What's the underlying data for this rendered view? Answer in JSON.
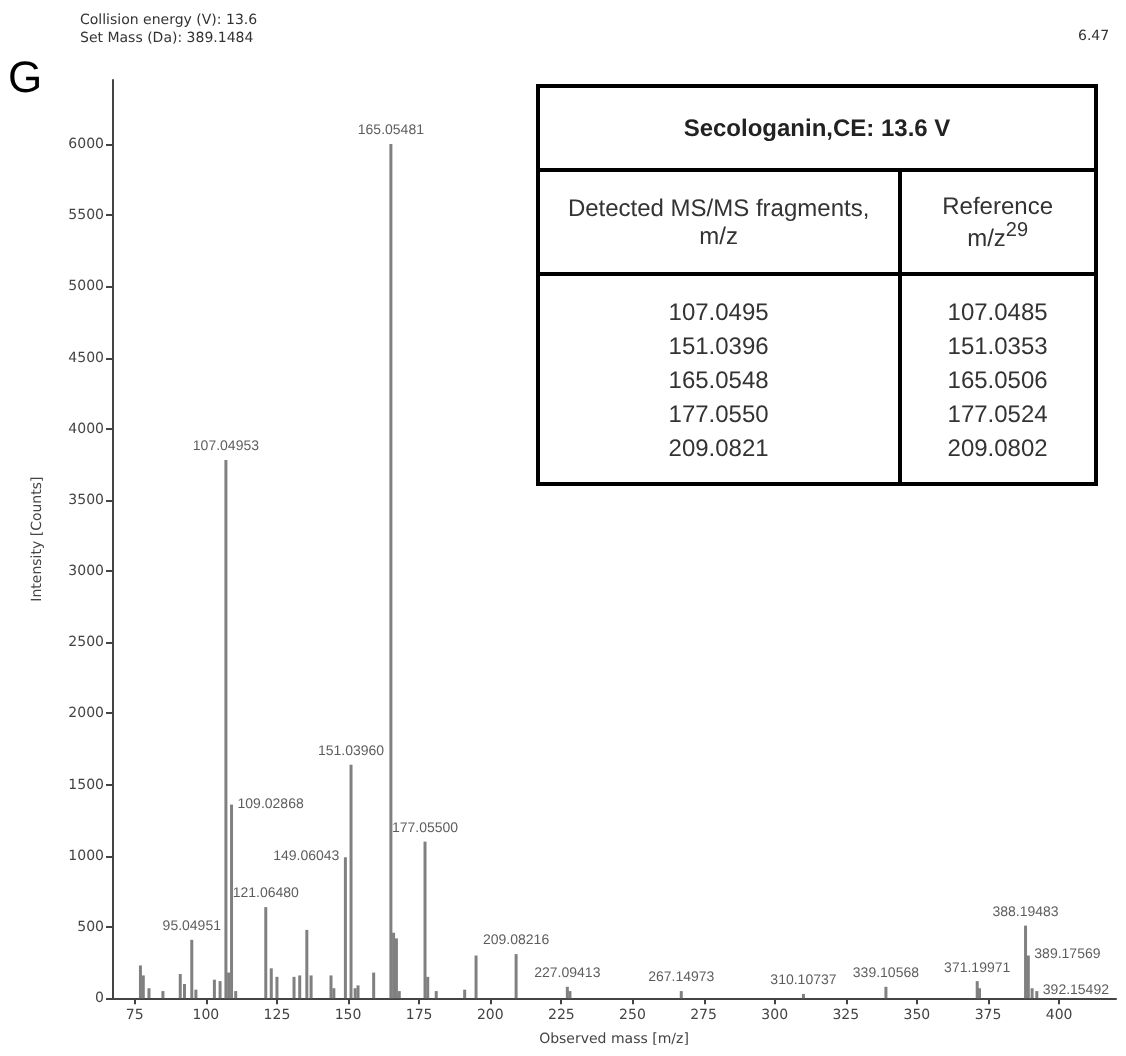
{
  "chart_data": [
    {
      "type": "bar",
      "xlabel": "Observed mass [m/z]",
      "ylabel": "Intensity [Counts]",
      "x": [
        77,
        78,
        80,
        84.9,
        91,
        92.5,
        95.04951,
        96.5,
        103,
        105,
        107.04953,
        108,
        109.02868,
        110.5,
        121.0648,
        123,
        125,
        131,
        133,
        135.5,
        137,
        144,
        145,
        149.06043,
        151.0396,
        152.5,
        153.5,
        159,
        165.05481,
        166,
        167,
        168,
        177.055,
        178,
        181,
        191,
        195,
        209.08216,
        227.09413,
        228,
        267.14973,
        310.10737,
        339.10568,
        371.19971,
        372,
        388.19483,
        389.17569,
        390.5,
        392.15492
      ],
      "values": [
        230,
        160,
        70,
        50,
        170,
        100,
        410,
        60,
        130,
        120,
        3780,
        180,
        1360,
        50,
        640,
        210,
        150,
        150,
        160,
        480,
        160,
        160,
        70,
        990,
        1640,
        70,
        90,
        180,
        6000,
        460,
        420,
        50,
        1100,
        150,
        50,
        60,
        300,
        310,
        80,
        50,
        50,
        30,
        80,
        120,
        70,
        510,
        300,
        70,
        50
      ],
      "color": "#808080",
      "xlim": [
        67,
        420
      ],
      "xticks": [
        75,
        100,
        125,
        150,
        175,
        200,
        225,
        250,
        275,
        300,
        325,
        350,
        375,
        400
      ],
      "ylim": [
        0,
        6450
      ],
      "yticks": [
        0,
        500,
        1000,
        1500,
        2000,
        2500,
        3000,
        3500,
        4000,
        4500,
        5000,
        5500,
        6000
      ],
      "grid": false,
      "annotations": [
        "Collision energy (V): 13.6",
        "Set Mass (Da): 389.1484",
        "G",
        "6.47",
        {
          "text": "95.04951",
          "x": 95.04951,
          "y": 410
        },
        {
          "text": "107.04953",
          "x": 107.04953,
          "y": 3780
        },
        {
          "text": "109.02868",
          "x": 109.02868,
          "y": 1360
        },
        {
          "text": "121.06480",
          "x": 121.0648,
          "y": 640
        },
        {
          "text": "149.06043",
          "x": 149.06043,
          "y": 990
        },
        {
          "text": "151.03960",
          "x": 151.0396,
          "y": 1640
        },
        {
          "text": "165.05481",
          "x": 165.05481,
          "y": 6000
        },
        {
          "text": "177.05500",
          "x": 177.055,
          "y": 1100
        },
        {
          "text": "209.08216",
          "x": 209.08216,
          "y": 310
        },
        {
          "text": "227.09413",
          "x": 227.09413,
          "y": 80
        },
        {
          "text": "267.14973",
          "x": 267.14973,
          "y": 50
        },
        {
          "text": "310.10737",
          "x": 310.10737,
          "y": 30
        },
        {
          "text": "339.10568",
          "x": 339.10568,
          "y": 80
        },
        {
          "text": "371.19971",
          "x": 371.19971,
          "y": 115
        },
        {
          "text": "388.19483",
          "x": 388.19483,
          "y": 510
        },
        {
          "text": "389.17569",
          "x": 389.17569,
          "y": 300
        },
        {
          "text": "392.15492",
          "x": 392.15492,
          "y": 50
        }
      ]
    },
    {
      "type": "other",
      "title": "Secologanin,CE: 13.6 V",
      "annotations": [
        "Detected MS/MS fragments, m/z",
        "Reference m/z$^{29}$",
        "107.0495",
        "107.0485",
        "151.0396",
        "151.0353",
        "165.0548",
        "165.0506",
        "177.0550",
        "177.0524",
        "209.0821",
        "209.0802"
      ]
    }
  ]
}
